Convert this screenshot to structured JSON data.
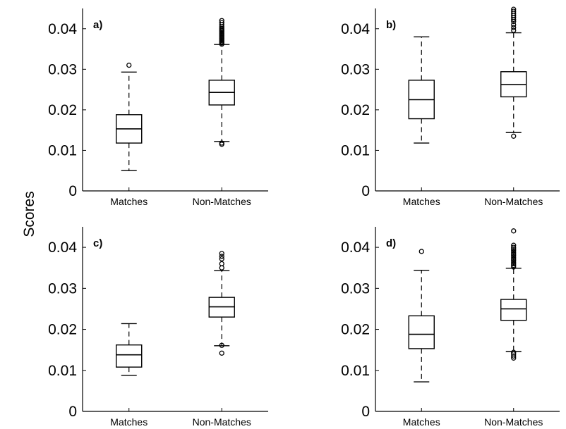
{
  "figure": {
    "ylabel": "Scores"
  },
  "chart_data": [
    {
      "type": "box",
      "panel_label": "a)",
      "categories": [
        "Matches",
        "Non-Matches"
      ],
      "ylim": [
        0,
        0.045
      ],
      "yticks": [
        0,
        0.01,
        0.02,
        0.03,
        0.04
      ],
      "ytick_labels": [
        "0",
        "0.01",
        "0.02",
        "0.03",
        "0.04"
      ],
      "boxes": [
        {
          "whisker_low": 0.005,
          "q1": 0.0118,
          "median": 0.0153,
          "q3": 0.0188,
          "whisker_high": 0.0293,
          "outliers": [
            0.031
          ]
        },
        {
          "whisker_low": 0.0122,
          "q1": 0.0212,
          "median": 0.0243,
          "q3": 0.0273,
          "whisker_high": 0.0361,
          "outliers": [
            0.0115,
            0.0118,
            0.0362,
            0.0365,
            0.0368,
            0.0371,
            0.0374,
            0.0377,
            0.038,
            0.0383,
            0.0386,
            0.0389,
            0.0392,
            0.0395,
            0.0398,
            0.0401,
            0.0405,
            0.041,
            0.0415,
            0.042
          ]
        }
      ]
    },
    {
      "type": "box",
      "panel_label": "b)",
      "categories": [
        "Matches",
        "Non-Matches"
      ],
      "ylim": [
        0,
        0.045
      ],
      "yticks": [
        0,
        0.01,
        0.02,
        0.03,
        0.04
      ],
      "ytick_labels": [
        "0",
        "0.01",
        "0.02",
        "0.03",
        "0.04"
      ],
      "boxes": [
        {
          "whisker_low": 0.0118,
          "q1": 0.0178,
          "median": 0.0225,
          "q3": 0.0273,
          "whisker_high": 0.038,
          "outliers": []
        },
        {
          "whisker_low": 0.0144,
          "q1": 0.0232,
          "median": 0.0262,
          "q3": 0.0294,
          "whisker_high": 0.039,
          "outliers": [
            0.0135,
            0.0396,
            0.0403,
            0.041,
            0.0418,
            0.0423,
            0.0428,
            0.0433,
            0.0438,
            0.0443,
            0.0448
          ]
        }
      ]
    },
    {
      "type": "box",
      "panel_label": "c)",
      "categories": [
        "Matches",
        "Non-Matches"
      ],
      "ylim": [
        0,
        0.045
      ],
      "yticks": [
        0,
        0.01,
        0.02,
        0.03,
        0.04
      ],
      "ytick_labels": [
        "0",
        "0.01",
        "0.02",
        "0.03",
        "0.04"
      ],
      "boxes": [
        {
          "whisker_low": 0.0088,
          "q1": 0.0108,
          "median": 0.0138,
          "q3": 0.0162,
          "whisker_high": 0.0214,
          "outliers": []
        },
        {
          "whisker_low": 0.016,
          "q1": 0.023,
          "median": 0.0255,
          "q3": 0.0278,
          "whisker_high": 0.0343,
          "outliers": [
            0.0142,
            0.0161,
            0.035,
            0.036,
            0.0372,
            0.0378,
            0.0385
          ]
        }
      ]
    },
    {
      "type": "box",
      "panel_label": "d)",
      "categories": [
        "Matches",
        "Non-Matches"
      ],
      "ylim": [
        0,
        0.045
      ],
      "yticks": [
        0,
        0.01,
        0.02,
        0.03,
        0.04
      ],
      "ytick_labels": [
        "0",
        "0.01",
        "0.02",
        "0.03",
        "0.04"
      ],
      "boxes": [
        {
          "whisker_low": 0.0072,
          "q1": 0.0153,
          "median": 0.0188,
          "q3": 0.0233,
          "whisker_high": 0.0344,
          "outliers": [
            0.039
          ]
        },
        {
          "whisker_low": 0.0146,
          "q1": 0.0222,
          "median": 0.025,
          "q3": 0.0273,
          "whisker_high": 0.0349,
          "outliers": [
            0.013,
            0.0135,
            0.014,
            0.0144,
            0.0352,
            0.0356,
            0.036,
            0.0364,
            0.0368,
            0.0372,
            0.0376,
            0.038,
            0.0384,
            0.0388,
            0.0392,
            0.0396,
            0.04,
            0.0405,
            0.044
          ]
        }
      ]
    }
  ]
}
